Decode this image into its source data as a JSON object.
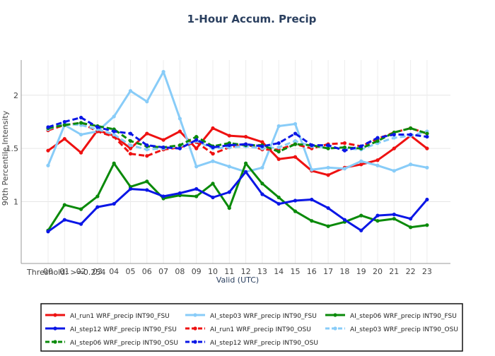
{
  "chart_data": {
    "type": "line",
    "title": "1-Hour Accum. Precip",
    "xlabel": "Valid (UTC)",
    "ylabel": "90th Percentile Intensity",
    "threshold_label": "Threshold: >=0.254",
    "categories": [
      "00",
      "01",
      "02",
      "03",
      "04",
      "05",
      "06",
      "07",
      "08",
      "09",
      "10",
      "11",
      "12",
      "13",
      "14",
      "15",
      "16",
      "17",
      "18",
      "19",
      "20",
      "21",
      "22",
      "23"
    ],
    "yticks": [
      1,
      1.5,
      2
    ],
    "ytick_labels": [
      "1",
      "1.5",
      "2"
    ],
    "ylim": [
      0.42,
      2.33
    ],
    "grid": true,
    "legend_position": "bottom",
    "series": [
      {
        "name": "AI_run1 WRF_precip INT90_FSU",
        "color": "#ee1111",
        "dash": "solid",
        "values": [
          1.48,
          1.59,
          1.46,
          1.67,
          1.62,
          1.5,
          1.64,
          1.58,
          1.66,
          1.5,
          1.69,
          1.62,
          1.61,
          1.56,
          1.4,
          1.42,
          1.29,
          1.25,
          1.32,
          1.35,
          1.39,
          1.5,
          1.62,
          1.5
        ]
      },
      {
        "name": "AI_step03 WRF_precip INT90_FSU",
        "color": "#88ccf8",
        "dash": "solid",
        "values": [
          1.34,
          1.72,
          1.63,
          1.66,
          1.8,
          2.04,
          1.94,
          2.22,
          1.78,
          1.33,
          1.38,
          1.33,
          1.28,
          1.32,
          1.71,
          1.73,
          1.3,
          1.32,
          1.31,
          1.38,
          1.34,
          1.29,
          1.35,
          1.32
        ]
      },
      {
        "name": "AI_step06 WRF_precip INT90_FSU",
        "color": "#0a8a0a",
        "dash": "solid",
        "values": [
          0.73,
          0.97,
          0.93,
          1.05,
          1.36,
          1.14,
          1.19,
          1.03,
          1.06,
          1.05,
          1.17,
          0.94,
          1.36,
          1.17,
          1.04,
          0.91,
          0.82,
          0.77,
          0.81,
          0.87,
          0.82,
          0.84,
          0.76,
          0.78
        ]
      },
      {
        "name": "AI_step12 WRF_precip INT90_FSU",
        "color": "#0a16e6",
        "dash": "solid",
        "values": [
          0.72,
          0.83,
          0.79,
          0.95,
          0.98,
          1.12,
          1.11,
          1.05,
          1.08,
          1.12,
          1.04,
          1.09,
          1.28,
          1.07,
          0.98,
          1.01,
          1.02,
          0.94,
          0.83,
          0.73,
          0.87,
          0.88,
          0.84,
          1.02
        ]
      },
      {
        "name": "AI_run1 WRF_precip INT90_OSU",
        "color": "#ee1111",
        "dash": "dash",
        "values": [
          1.67,
          1.72,
          1.74,
          1.66,
          1.61,
          1.45,
          1.43,
          1.49,
          1.51,
          1.56,
          1.45,
          1.51,
          1.54,
          1.49,
          1.49,
          1.54,
          1.5,
          1.54,
          1.55,
          1.52,
          1.59,
          1.65,
          1.69,
          1.64
        ]
      },
      {
        "name": "AI_step03 WRF_precip INT90_OSU",
        "color": "#88ccf8",
        "dash": "dash",
        "values": [
          1.68,
          1.73,
          1.72,
          1.68,
          1.63,
          1.53,
          1.49,
          1.5,
          1.52,
          1.57,
          1.5,
          1.51,
          1.52,
          1.5,
          1.51,
          1.57,
          1.52,
          1.51,
          1.5,
          1.49,
          1.55,
          1.6,
          1.62,
          1.66
        ]
      },
      {
        "name": "AI_step06 WRF_precip INT90_OSU",
        "color": "#0a8a0a",
        "dash": "dash",
        "values": [
          1.69,
          1.72,
          1.74,
          1.71,
          1.68,
          1.57,
          1.52,
          1.51,
          1.53,
          1.61,
          1.52,
          1.55,
          1.53,
          1.53,
          1.47,
          1.54,
          1.53,
          1.5,
          1.51,
          1.5,
          1.57,
          1.65,
          1.69,
          1.64
        ]
      },
      {
        "name": "AI_step12 WRF_precip INT90_OSU",
        "color": "#0a16e6",
        "dash": "dash",
        "values": [
          1.7,
          1.75,
          1.79,
          1.7,
          1.66,
          1.64,
          1.53,
          1.51,
          1.5,
          1.58,
          1.51,
          1.53,
          1.54,
          1.52,
          1.55,
          1.64,
          1.53,
          1.53,
          1.48,
          1.52,
          1.6,
          1.63,
          1.63,
          1.61
        ]
      }
    ],
    "legend_order": [
      0,
      1,
      2,
      3,
      4,
      5,
      6,
      7
    ]
  }
}
